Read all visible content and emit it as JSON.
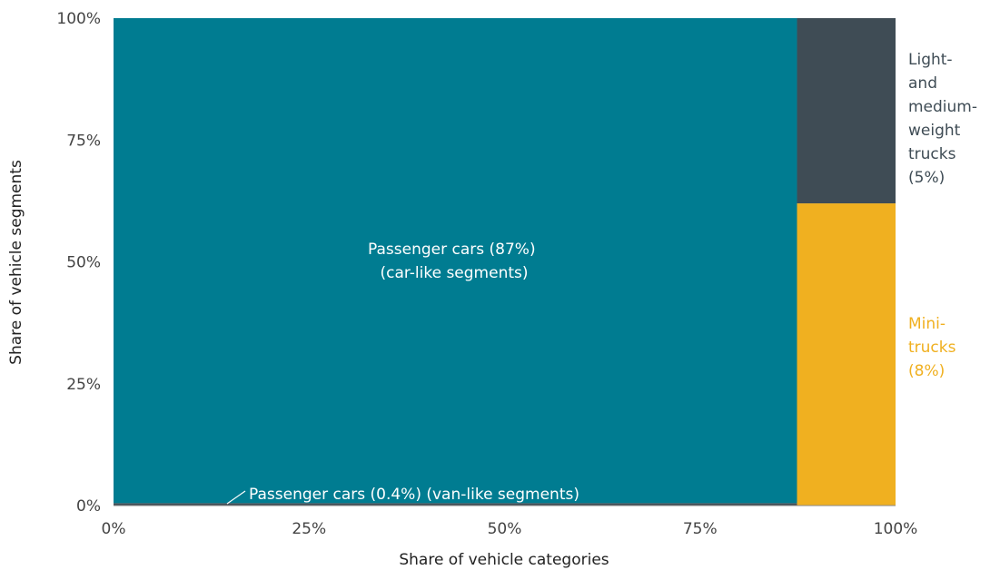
{
  "chart_data": {
    "type": "mekko",
    "xlabel": "Share of vehicle categories",
    "ylabel": "Share of vehicle segments",
    "x_ticks": [
      "0%",
      "25%",
      "50%",
      "75%",
      "100%"
    ],
    "y_ticks": [
      "0%",
      "25%",
      "50%",
      "75%",
      "100%"
    ],
    "xlim": [
      0,
      100
    ],
    "ylim": [
      0,
      100
    ],
    "columns": [
      {
        "category": "Passenger cars",
        "x_share": 87.4,
        "segments": [
          {
            "name": "van-like segments",
            "y_share": 0.5,
            "color": "#3f4c55",
            "label_lines": [
              "Passenger cars (0.4%) (van-like segments)"
            ]
          },
          {
            "name": "car-like segments",
            "y_share": 99.5,
            "color": "#007c91",
            "label_lines": [
              "Passenger cars (87%)",
              "(car-like segments)"
            ]
          }
        ]
      },
      {
        "category": "Trucks",
        "x_share": 12.6,
        "segments": [
          {
            "name": "Mini-trucks",
            "y_share": 62,
            "color": "#f0b020",
            "label_lines": [
              "Mini-",
              "trucks",
              "(8%)"
            ]
          },
          {
            "name": "Light- and medium-weight trucks",
            "y_share": 38,
            "color": "#3f4c55",
            "label_lines": [
              "Light-",
              "and",
              "medium-",
              "weight",
              "trucks",
              "(5%)"
            ]
          }
        ]
      }
    ],
    "colors": {
      "teal": "#007c91",
      "slate": "#3f4c55",
      "gold": "#f0b020"
    }
  }
}
